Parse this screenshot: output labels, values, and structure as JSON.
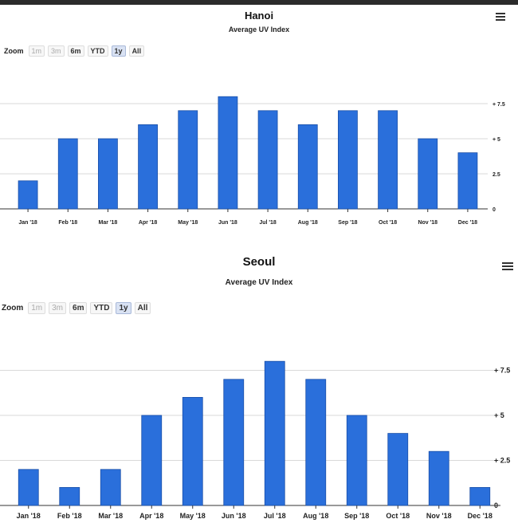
{
  "colors": {
    "bar": "#2a6fdb",
    "bar_edge": "#1a4fa8",
    "grid": "#d9d9d9",
    "axis": "#333333"
  },
  "menu_icon": "hamburger-menu-icon",
  "chart_data": [
    {
      "type": "bar",
      "title": "Hanoi",
      "subtitle": "Average UV Index",
      "zoom_label": "Zoom",
      "zoom_buttons": [
        {
          "label": "1m",
          "state": "disabled"
        },
        {
          "label": "3m",
          "state": "disabled"
        },
        {
          "label": "6m",
          "state": "normal"
        },
        {
          "label": "YTD",
          "state": "normal"
        },
        {
          "label": "1y",
          "state": "selected"
        },
        {
          "label": "All",
          "state": "normal"
        }
      ],
      "categories": [
        "Jan '18",
        "Feb '18",
        "Mar '18",
        "Apr '18",
        "May '18",
        "Jun '18",
        "Jul '18",
        "Aug '18",
        "Sep '18",
        "Oct '18",
        "Nov '18",
        "Dec '18"
      ],
      "values": [
        2,
        5,
        5,
        6,
        7,
        8,
        7,
        6,
        7,
        7,
        5,
        4
      ],
      "y_ticks": [
        {
          "value": 0,
          "label": "0"
        },
        {
          "value": 2.5,
          "label": "2.5"
        },
        {
          "value": 5,
          "label": "+ 5"
        },
        {
          "value": 7.5,
          "label": "+ 7.5"
        }
      ],
      "ylim": [
        0,
        10
      ],
      "grid": true
    },
    {
      "type": "bar",
      "title": "Seoul",
      "subtitle": "Average UV Index",
      "zoom_label": "Zoom",
      "zoom_buttons": [
        {
          "label": "1m",
          "state": "disabled"
        },
        {
          "label": "3m",
          "state": "disabled"
        },
        {
          "label": "6m",
          "state": "normal"
        },
        {
          "label": "YTD",
          "state": "normal"
        },
        {
          "label": "1y",
          "state": "selected"
        },
        {
          "label": "All",
          "state": "normal"
        }
      ],
      "categories": [
        "Jan '18",
        "Feb '18",
        "Mar '18",
        "Apr '18",
        "May '18",
        "Jun '18",
        "Jul '18",
        "Aug '18",
        "Sep '18",
        "Oct '18",
        "Nov '18",
        "Dec '18"
      ],
      "values": [
        2,
        1,
        2,
        5,
        6,
        7,
        8,
        7,
        5,
        4,
        3,
        1
      ],
      "y_ticks": [
        {
          "value": 0,
          "label": "0"
        },
        {
          "value": 2.5,
          "label": "+ 2.5"
        },
        {
          "value": 5,
          "label": "+ 5"
        },
        {
          "value": 7.5,
          "label": "+ 7.5"
        }
      ],
      "ylim": [
        0,
        10
      ],
      "grid": true
    }
  ]
}
